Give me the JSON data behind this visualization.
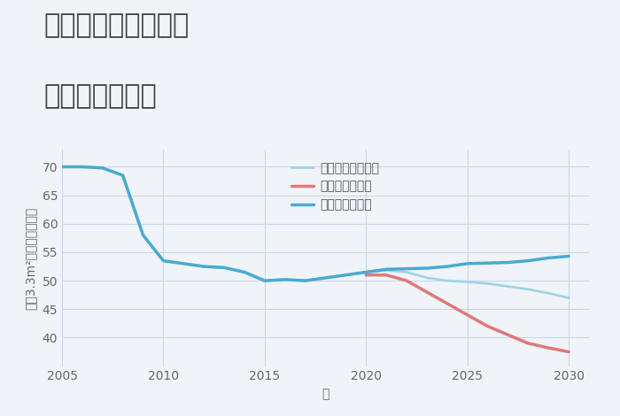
{
  "title_line1": "奈良県奈良市左京の",
  "title_line2": "土地の価格推移",
  "xlabel": "年",
  "ylabel": "坪（3.3m²）単価（万円）",
  "background_color": "#f0f4f8",
  "plot_bg_color": "#f0f4f8",
  "grid_color": "#c8d8ea",
  "ylim": [
    35,
    73
  ],
  "yticks": [
    40,
    45,
    50,
    55,
    60,
    65,
    70
  ],
  "xlim": [
    2005,
    2031
  ],
  "xticks": [
    2005,
    2010,
    2015,
    2020,
    2025,
    2030
  ],
  "good_scenario": {
    "label": "グッドシナリオ",
    "color": "#4aaad0",
    "linewidth": 2.5,
    "x": [
      2005,
      2006,
      2007,
      2008,
      2009,
      2010,
      2011,
      2012,
      2013,
      2014,
      2015,
      2016,
      2017,
      2018,
      2019,
      2020,
      2021,
      2022,
      2023,
      2024,
      2025,
      2026,
      2027,
      2028,
      2029,
      2030
    ],
    "y": [
      70.0,
      70.0,
      69.8,
      68.5,
      58.0,
      53.5,
      53.0,
      52.5,
      52.3,
      51.5,
      50.0,
      50.2,
      50.0,
      50.5,
      51.0,
      51.5,
      52.0,
      52.1,
      52.2,
      52.5,
      53.0,
      53.1,
      53.2,
      53.5,
      54.0,
      54.3
    ]
  },
  "bad_scenario": {
    "label": "バッドシナリオ",
    "color": "#e07878",
    "linewidth": 2.5,
    "x": [
      2020,
      2021,
      2022,
      2023,
      2024,
      2025,
      2026,
      2027,
      2028,
      2029,
      2030
    ],
    "y": [
      51.0,
      51.0,
      50.0,
      48.0,
      46.0,
      44.0,
      42.0,
      40.5,
      39.0,
      38.2,
      37.5
    ]
  },
  "normal_scenario": {
    "label": "ノーマルシナリオ",
    "color": "#a0d4e4",
    "linewidth": 2.0,
    "x": [
      2005,
      2006,
      2007,
      2008,
      2009,
      2010,
      2011,
      2012,
      2013,
      2014,
      2015,
      2016,
      2017,
      2018,
      2019,
      2020,
      2021,
      2022,
      2023,
      2024,
      2025,
      2026,
      2027,
      2028,
      2029,
      2030
    ],
    "y": [
      70.0,
      70.0,
      69.8,
      68.5,
      58.0,
      53.5,
      53.0,
      52.5,
      52.3,
      51.5,
      50.0,
      50.2,
      50.0,
      50.5,
      51.0,
      51.5,
      51.8,
      51.5,
      50.5,
      50.0,
      49.8,
      49.5,
      49.0,
      48.5,
      47.8,
      47.0
    ]
  },
  "legend_fontsize": 10,
  "title_fontsize": 22,
  "axis_label_fontsize": 10,
  "tick_fontsize": 10
}
